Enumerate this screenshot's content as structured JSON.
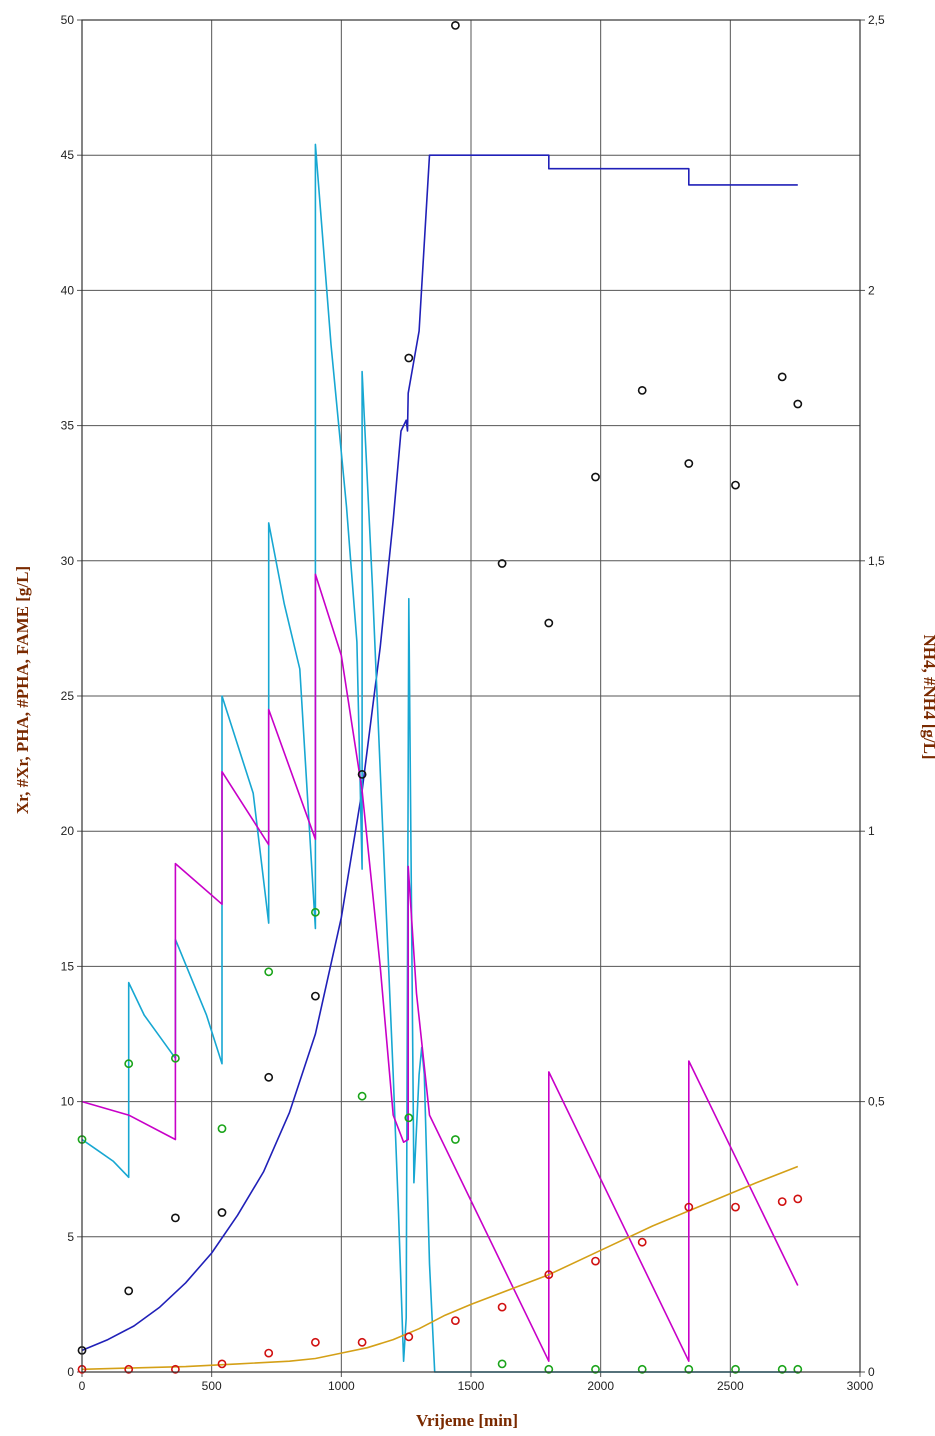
{
  "chart_data": {
    "type": "line",
    "xlabel": "Vrijeme [min]",
    "ylabel_left": "Xr, #Xr, PHA, #PHA, FAME  [g/L]",
    "ylabel_right": "NH4, #NH4  [g/L]",
    "xlim": [
      0,
      3000
    ],
    "ylim_left": [
      0,
      50
    ],
    "ylim_right": [
      0,
      2.5
    ],
    "x_ticks": [
      "0",
      "500",
      "1000",
      "1500",
      "2000",
      "2500",
      "3000"
    ],
    "y_ticks_left": [
      "0",
      "5",
      "10",
      "15",
      "20",
      "25",
      "30",
      "35",
      "40",
      "45",
      "50"
    ],
    "y_ticks_right": [
      "0",
      "0,5",
      "1",
      "1,5",
      "2",
      "2,5"
    ],
    "grid": true,
    "colors": {
      "xr": "#2020b8",
      "nh4": "#17a7d2",
      "pha": "#c800c8",
      "fame": "#d4a017",
      "meas_xr": "#111111",
      "meas_nh4": "#1aa41a",
      "meas_pha": "#d01010"
    },
    "series": [
      {
        "axis": "left",
        "color_key": "xr",
        "x": [
          0,
          100,
          200,
          300,
          400,
          500,
          600,
          700,
          800,
          900,
          1000,
          1080,
          1150,
          1200,
          1230,
          1250,
          1255,
          1258,
          1300,
          1340,
          1800,
          1800,
          2340,
          2340,
          2760
        ],
        "y": [
          0.8,
          1.2,
          1.7,
          2.4,
          3.3,
          4.4,
          5.8,
          7.4,
          9.6,
          12.5,
          16.8,
          21.5,
          26.8,
          31.5,
          34.8,
          35.2,
          34.8,
          36.2,
          38.5,
          45.0,
          45.0,
          44.5,
          44.5,
          43.9,
          43.9
        ]
      },
      {
        "axis": "right",
        "color_key": "nh4",
        "x": [
          0,
          60,
          120,
          180,
          180,
          240,
          300,
          360,
          360,
          420,
          480,
          540,
          540,
          600,
          660,
          720,
          720,
          780,
          840,
          900,
          900,
          960,
          1020,
          1060,
          1080,
          1080,
          1120,
          1160,
          1200,
          1220,
          1240,
          1250,
          1260,
          1260,
          1280,
          1300,
          1310,
          1320,
          1340,
          1360,
          1500,
          1800,
          2000,
          2500,
          2760
        ],
        "y": [
          0.43,
          0.41,
          0.39,
          0.36,
          0.72,
          0.66,
          0.62,
          0.58,
          0.8,
          0.73,
          0.66,
          0.57,
          1.25,
          1.16,
          1.07,
          0.83,
          1.57,
          1.42,
          1.3,
          0.82,
          2.27,
          1.9,
          1.6,
          1.35,
          0.93,
          1.85,
          1.45,
          1.0,
          0.55,
          0.3,
          0.02,
          0.1,
          1.43,
          1.43,
          0.35,
          0.55,
          0.6,
          0.55,
          0.2,
          0.0,
          0.0,
          0.0,
          0.0,
          0.0,
          0.0
        ]
      },
      {
        "axis": "left",
        "color_key": "pha",
        "x": [
          0,
          180,
          360,
          360,
          540,
          540,
          720,
          720,
          900,
          900,
          1000,
          1080,
          1150,
          1200,
          1240,
          1258,
          1258,
          1290,
          1340,
          1800,
          1800,
          2340,
          2340,
          2760
        ],
        "y": [
          10.0,
          9.5,
          8.6,
          18.8,
          17.3,
          22.2,
          19.5,
          24.5,
          19.7,
          29.5,
          26.5,
          21.5,
          15.0,
          9.5,
          8.5,
          8.6,
          18.7,
          14.0,
          9.5,
          0.4,
          11.1,
          0.4,
          11.5,
          3.2
        ]
      },
      {
        "axis": "left",
        "color_key": "fame",
        "x": [
          0,
          200,
          400,
          600,
          800,
          900,
          1000,
          1100,
          1200,
          1300,
          1400,
          1500,
          1800,
          2000,
          2200,
          2400,
          2600,
          2760
        ],
        "y": [
          0.1,
          0.15,
          0.2,
          0.3,
          0.4,
          0.5,
          0.7,
          0.9,
          1.2,
          1.6,
          2.1,
          2.5,
          3.6,
          4.5,
          5.4,
          6.2,
          7.0,
          7.6
        ]
      }
    ],
    "measurements": [
      {
        "axis": "left",
        "color_key": "meas_xr",
        "x": [
          0,
          180,
          360,
          540,
          720,
          900,
          1080,
          1260,
          1440,
          1620,
          1800,
          1980,
          2160,
          2340,
          2520,
          2700,
          2760
        ],
        "y": [
          0.8,
          3.0,
          5.7,
          5.9,
          10.9,
          13.9,
          22.1,
          37.5,
          49.8,
          29.9,
          27.7,
          33.1,
          36.3,
          33.6,
          32.8,
          36.8,
          35.8
        ]
      },
      {
        "axis": "right",
        "color_key": "meas_nh4",
        "x": [
          0,
          180,
          360,
          540,
          720,
          900,
          1080,
          1260,
          1440,
          1620,
          1800,
          1980,
          2160,
          2340,
          2520,
          2700,
          2760
        ],
        "y": [
          0.43,
          0.57,
          0.58,
          0.45,
          0.74,
          0.85,
          0.51,
          0.47,
          0.43,
          0.015,
          0.005,
          0.005,
          0.005,
          0.005,
          0.005,
          0.005,
          0.005
        ]
      },
      {
        "axis": "left",
        "color_key": "meas_pha",
        "x": [
          0,
          180,
          360,
          540,
          720,
          900,
          1080,
          1260,
          1440,
          1620,
          1800,
          1980,
          2160,
          2340,
          2520,
          2700,
          2760
        ],
        "y": [
          0.1,
          0.1,
          0.1,
          0.3,
          0.7,
          1.1,
          1.1,
          1.3,
          1.9,
          2.4,
          3.6,
          4.1,
          4.8,
          6.1,
          6.1,
          6.3,
          6.4
        ]
      }
    ]
  }
}
